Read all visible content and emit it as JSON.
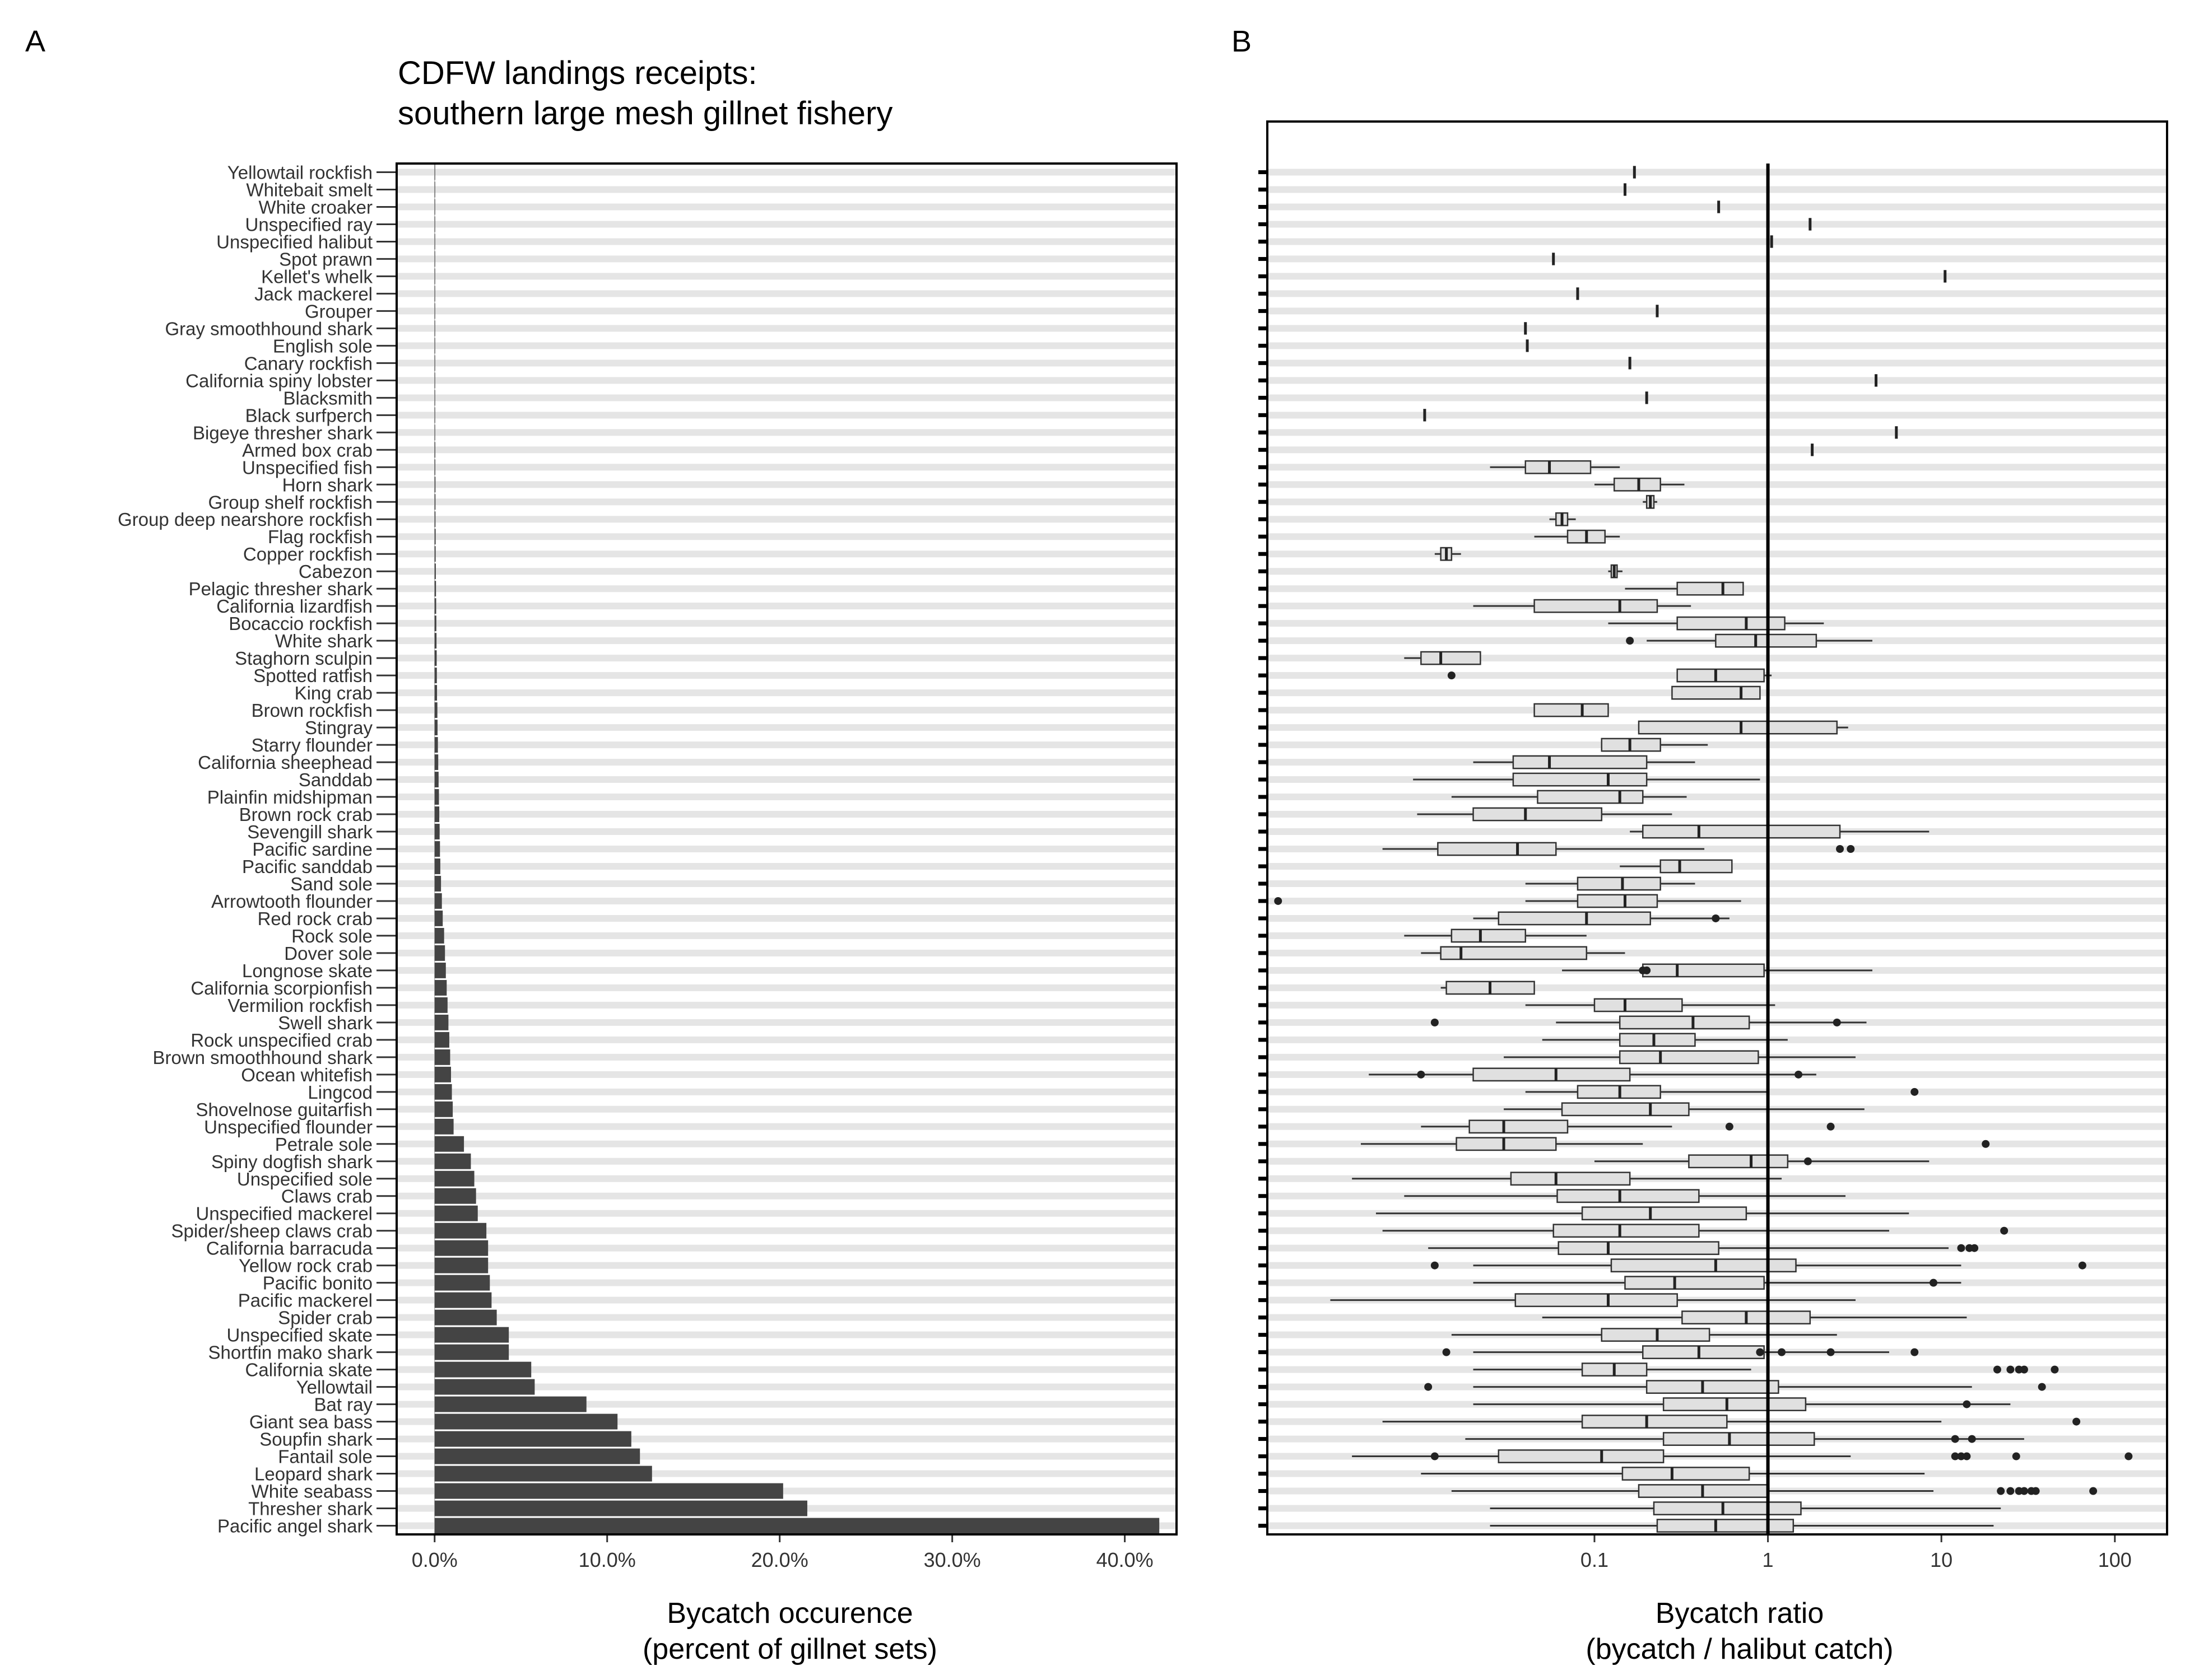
{
  "panel_a": {
    "tag": "A",
    "title_line1": "CDFW landings receipts:",
    "title_line2": "southern large mesh gillnet fishery"
  },
  "panel_b": {
    "tag": "B"
  },
  "chart_data": [
    {
      "type": "bar",
      "orientation": "horizontal",
      "title": "CDFW landings receipts:\nsouthern large mesh gillnet fishery",
      "xlabel": "Bycatch occurence\n(percent of gillnet sets)",
      "ylabel": "",
      "xlim": [
        -2.2,
        43
      ],
      "xticks": [
        0,
        10,
        20,
        30,
        40
      ],
      "xtick_labels": [
        "0.0%",
        "10.0%",
        "20.0%",
        "30.0%",
        "40.0%"
      ],
      "grid": "horizontal",
      "colors": {
        "bar": "#444444",
        "grid": "#e5e5e5"
      },
      "categories": [
        "Yellowtail rockfish",
        "Whitebait smelt",
        "White croaker",
        "Unspecified ray",
        "Unspecified halibut",
        "Spot prawn",
        "Kellet's whelk",
        "Jack mackerel",
        "Grouper",
        "Gray smoothhound shark",
        "English sole",
        "Canary rockfish",
        "California spiny lobster",
        "Blacksmith",
        "Black surfperch",
        "Bigeye thresher shark",
        "Armed box crab",
        "Unspecified fish",
        "Horn shark",
        "Group shelf rockfish",
        "Group deep nearshore rockfish",
        "Flag rockfish",
        "Copper rockfish",
        "Cabezon",
        "Pelagic thresher shark",
        "California lizardfish",
        "Bocaccio rockfish",
        "White shark",
        "Staghorn sculpin",
        "Spotted ratfish",
        "King crab",
        "Brown rockfish",
        "Stingray",
        "Starry flounder",
        "California sheephead",
        "Sanddab",
        "Plainfin midshipman",
        "Brown rock crab",
        "Sevengill shark",
        "Pacific sardine",
        "Pacific sanddab",
        "Sand sole",
        "Arrowtooth flounder",
        "Red rock crab",
        "Rock sole",
        "Dover sole",
        "Longnose skate",
        "California scorpionfish",
        "Vermilion rockfish",
        "Swell shark",
        "Rock unspecified crab",
        "Brown smoothhound shark",
        "Ocean whitefish",
        "Lingcod",
        "Shovelnose guitarfish",
        "Unspecified flounder",
        "Petrale sole",
        "Spiny dogfish shark",
        "Unspecified sole",
        "Claws crab",
        "Unspecified mackerel",
        "Spider/sheep claws crab",
        "California barracuda",
        "Yellow rock crab",
        "Pacific bonito",
        "Pacific mackerel",
        "Spider crab",
        "Unspecified skate",
        "Shortfin mako shark",
        "California skate",
        "Yellowtail",
        "Bat ray",
        "Giant sea bass",
        "Soupfin shark",
        "Fantail sole",
        "Leopard shark",
        "White seabass",
        "Thresher shark",
        "Pacific angel shark"
      ],
      "values": [
        0.02,
        0.02,
        0.02,
        0.02,
        0.02,
        0.02,
        0.02,
        0.02,
        0.02,
        0.02,
        0.02,
        0.02,
        0.02,
        0.02,
        0.02,
        0.03,
        0.04,
        0.04,
        0.05,
        0.05,
        0.05,
        0.06,
        0.06,
        0.07,
        0.08,
        0.09,
        0.1,
        0.11,
        0.12,
        0.13,
        0.14,
        0.16,
        0.17,
        0.19,
        0.21,
        0.23,
        0.25,
        0.27,
        0.29,
        0.31,
        0.33,
        0.37,
        0.42,
        0.47,
        0.55,
        0.6,
        0.65,
        0.7,
        0.75,
        0.8,
        0.85,
        0.9,
        0.95,
        1.0,
        1.05,
        1.1,
        1.7,
        2.1,
        2.3,
        2.4,
        2.5,
        3.0,
        3.1,
        3.1,
        3.2,
        3.3,
        3.6,
        4.3,
        4.3,
        5.6,
        5.8,
        8.8,
        10.6,
        11.4,
        11.9,
        12.6,
        20.2,
        21.6,
        42.0
      ]
    },
    {
      "type": "box",
      "orientation": "horizontal",
      "xlabel": "Bycatch ratio\n(bycatch / halibut catch)",
      "ylabel": "",
      "xscale": "log10",
      "xlim": [
        0.0013,
        200
      ],
      "xticks": [
        0.1,
        1,
        10,
        100
      ],
      "xtick_labels": [
        "0.1",
        "1",
        "10",
        "100"
      ],
      "reference_line_x": 1,
      "grid": "horizontal",
      "colors": {
        "box_fill": "#e0e0e0",
        "line": "#333333",
        "grid": "#e5e5e5"
      },
      "categories": [
        "Yellowtail rockfish",
        "Whitebait smelt",
        "White croaker",
        "Unspecified ray",
        "Unspecified halibut",
        "Spot prawn",
        "Kellet's whelk",
        "Jack mackerel",
        "Grouper",
        "Gray smoothhound shark",
        "English sole",
        "Canary rockfish",
        "California spiny lobster",
        "Blacksmith",
        "Black surfperch",
        "Bigeye thresher shark",
        "Armed box crab",
        "Unspecified fish",
        "Horn shark",
        "Group shelf rockfish",
        "Group deep nearshore rockfish",
        "Flag rockfish",
        "Copper rockfish",
        "Cabezon",
        "Pelagic thresher shark",
        "California lizardfish",
        "Bocaccio rockfish",
        "White shark",
        "Staghorn sculpin",
        "Spotted ratfish",
        "King crab",
        "Brown rockfish",
        "Stingray",
        "Starry flounder",
        "California sheephead",
        "Sanddab",
        "Plainfin midshipman",
        "Brown rock crab",
        "Sevengill shark",
        "Pacific sardine",
        "Pacific sanddab",
        "Sand sole",
        "Arrowtooth flounder",
        "Red rock crab",
        "Rock sole",
        "Dover sole",
        "Longnose skate",
        "California scorpionfish",
        "Vermilion rockfish",
        "Swell shark",
        "Rock unspecified crab",
        "Brown smoothhound shark",
        "Ocean whitefish",
        "Lingcod",
        "Shovelnose guitarfish",
        "Unspecified flounder",
        "Petrale sole",
        "Spiny dogfish shark",
        "Unspecified sole",
        "Claws crab",
        "Unspecified mackerel",
        "Spider/sheep claws crab",
        "California barracuda",
        "Yellow rock crab",
        "Pacific bonito",
        "Pacific mackerel",
        "Spider crab",
        "Unspecified skate",
        "Shortfin mako shark",
        "California skate",
        "Yellowtail",
        "Bat ray",
        "Giant sea bass",
        "Soupfin shark",
        "Fantail sole",
        "Leopard shark",
        "White seabass",
        "Thresher shark",
        "Pacific angel shark"
      ],
      "note_order": "boxes listed top to bottom; [min, q1, median, q3, max] in data units; null = no box",
      "boxes": [
        [
          0.17,
          0.17,
          0.17,
          0.17,
          0.17
        ],
        [
          0.15,
          0.15,
          0.15,
          0.15,
          0.15
        ],
        [
          0.52,
          0.52,
          0.52,
          0.52,
          0.52
        ],
        [
          1.75,
          1.75,
          1.75,
          1.75,
          1.75
        ],
        [
          1.05,
          1.05,
          1.05,
          1.05,
          1.05
        ],
        [
          0.058,
          0.058,
          0.058,
          0.058,
          0.058
        ],
        [
          10.5,
          10.5,
          10.5,
          10.5,
          10.5
        ],
        [
          0.08,
          0.08,
          0.08,
          0.08,
          0.08
        ],
        [
          0.23,
          0.23,
          0.23,
          0.23,
          0.23
        ],
        [
          0.04,
          0.04,
          0.04,
          0.04,
          0.04
        ],
        [
          0.041,
          0.041,
          0.041,
          0.041,
          0.041
        ],
        [
          0.16,
          0.16,
          0.16,
          0.16,
          0.16
        ],
        [
          4.2,
          4.2,
          4.2,
          4.2,
          4.2
        ],
        [
          0.2,
          0.2,
          0.2,
          0.2,
          0.2
        ],
        [
          0.0105,
          0.0105,
          0.0105,
          0.0105,
          0.0105
        ],
        [
          5.5,
          5.5,
          5.5,
          5.5,
          5.5
        ],
        [
          1.8,
          1.8,
          1.8,
          1.8,
          1.8
        ],
        [
          0.025,
          0.04,
          0.055,
          0.095,
          0.14
        ],
        [
          0.1,
          0.13,
          0.18,
          0.24,
          0.33
        ],
        [
          0.19,
          0.2,
          0.21,
          0.22,
          0.23
        ],
        [
          0.055,
          0.06,
          0.065,
          0.07,
          0.078
        ],
        [
          0.045,
          0.07,
          0.09,
          0.115,
          0.14
        ],
        [
          0.012,
          0.013,
          0.014,
          0.015,
          0.017
        ],
        [
          0.12,
          0.125,
          0.13,
          0.135,
          0.145
        ],
        [
          0.15,
          0.3,
          0.55,
          0.72,
          0.72
        ],
        [
          0.02,
          0.045,
          0.14,
          0.23,
          0.36
        ],
        [
          0.12,
          0.3,
          0.75,
          1.25,
          2.1
        ],
        [
          0.2,
          0.5,
          0.85,
          1.9,
          4.0
        ],
        [
          0.008,
          0.01,
          0.013,
          0.022,
          0.022
        ],
        [
          0.3,
          0.3,
          0.5,
          0.95,
          1.05
        ],
        [
          0.28,
          0.28,
          0.7,
          0.9,
          0.9
        ],
        [
          0.045,
          0.045,
          0.085,
          0.12,
          0.12
        ],
        [
          0.18,
          0.18,
          0.7,
          2.5,
          2.9
        ],
        [
          0.11,
          0.11,
          0.16,
          0.24,
          0.45
        ],
        [
          0.02,
          0.034,
          0.055,
          0.2,
          0.38
        ],
        [
          0.009,
          0.034,
          0.12,
          0.2,
          0.9
        ],
        [
          0.015,
          0.047,
          0.14,
          0.19,
          0.34
        ],
        [
          0.0095,
          0.02,
          0.04,
          0.11,
          0.28
        ],
        [
          0.16,
          0.19,
          0.4,
          2.6,
          8.5
        ],
        [
          0.006,
          0.0125,
          0.036,
          0.06,
          0.43
        ],
        [
          0.14,
          0.24,
          0.31,
          0.62,
          0.62
        ],
        [
          0.04,
          0.08,
          0.145,
          0.24,
          0.38
        ],
        [
          0.04,
          0.08,
          0.15,
          0.23,
          0.7
        ],
        [
          0.02,
          0.028,
          0.09,
          0.21,
          0.6
        ],
        [
          0.008,
          0.015,
          0.022,
          0.04,
          0.09
        ],
        [
          0.01,
          0.013,
          0.017,
          0.09,
          0.15
        ],
        [
          0.065,
          0.19,
          0.3,
          0.95,
          4.0
        ],
        [
          0.013,
          0.014,
          0.025,
          0.045,
          0.045
        ],
        [
          0.04,
          0.1,
          0.15,
          0.32,
          1.1
        ],
        [
          0.06,
          0.14,
          0.37,
          0.78,
          3.7
        ],
        [
          0.05,
          0.14,
          0.22,
          0.38,
          1.3
        ],
        [
          0.03,
          0.14,
          0.24,
          0.88,
          3.2
        ],
        [
          0.005,
          0.02,
          0.06,
          0.16,
          1.9
        ],
        [
          0.04,
          0.08,
          0.14,
          0.24,
          1.0
        ],
        [
          0.03,
          0.065,
          0.21,
          0.35,
          3.6
        ],
        [
          0.01,
          0.019,
          0.03,
          0.07,
          0.28
        ],
        [
          0.0045,
          0.016,
          0.03,
          0.06,
          0.19
        ],
        [
          0.1,
          0.35,
          0.8,
          1.3,
          8.5
        ],
        [
          0.004,
          0.033,
          0.06,
          0.16,
          1.2
        ],
        [
          0.008,
          0.061,
          0.14,
          0.4,
          2.8
        ],
        [
          0.0055,
          0.085,
          0.21,
          0.75,
          6.5
        ],
        [
          0.006,
          0.058,
          0.14,
          0.4,
          5.0
        ],
        [
          0.011,
          0.062,
          0.12,
          0.52,
          11.0
        ],
        [
          0.02,
          0.125,
          0.5,
          1.45,
          13.0
        ],
        [
          0.02,
          0.15,
          0.29,
          0.95,
          13.0
        ],
        [
          0.003,
          0.035,
          0.12,
          0.3,
          3.2
        ],
        [
          0.05,
          0.32,
          0.75,
          1.75,
          14.0
        ],
        [
          0.015,
          0.11,
          0.23,
          0.46,
          2.5
        ],
        [
          0.02,
          0.19,
          0.4,
          0.95,
          5.0
        ],
        [
          0.02,
          0.085,
          0.13,
          0.2,
          0.8
        ],
        [
          0.02,
          0.2,
          0.42,
          1.15,
          15.0
        ],
        [
          0.02,
          0.25,
          0.58,
          1.65,
          25.0
        ],
        [
          0.006,
          0.085,
          0.2,
          0.58,
          10.0
        ],
        [
          0.018,
          0.25,
          0.6,
          1.85,
          30.0
        ],
        [
          0.004,
          0.028,
          0.11,
          0.25,
          3.0
        ],
        [
          0.01,
          0.145,
          0.28,
          0.78,
          8.0
        ],
        [
          0.015,
          0.18,
          0.42,
          1.0,
          9.0
        ],
        [
          0.025,
          0.22,
          0.55,
          1.55,
          22.0
        ],
        [
          0.025,
          0.23,
          0.5,
          1.4,
          20.0
        ]
      ],
      "outliers": [
        [],
        [],
        [],
        [],
        [],
        [],
        [],
        [],
        [],
        [],
        [],
        [],
        [],
        [],
        [],
        [],
        [],
        [],
        [],
        [],
        [],
        [],
        [],
        [],
        [],
        [],
        [],
        [
          0.16
        ],
        [],
        [
          0.015
        ],
        [],
        [],
        [],
        [],
        [],
        [],
        [],
        [],
        [],
        [
          2.6,
          3.0
        ],
        [],
        [],
        [
          0.0015
        ],
        [
          0.5
        ],
        [],
        [],
        [
          0.19,
          0.2
        ],
        [],
        [],
        [
          0.012,
          2.5
        ],
        [],
        [],
        [
          0.01,
          1.5
        ],
        [
          7.0
        ],
        [],
        [
          0.6,
          2.3
        ],
        [
          18.0
        ],
        [
          1.7
        ],
        [],
        [],
        [],
        [
          23.0
        ],
        [
          13.0,
          14.5,
          15.5
        ],
        [
          0.012,
          65.0
        ],
        [
          9.0
        ],
        [],
        [],
        [],
        [
          0.014,
          0.9,
          1.2,
          2.3,
          7.0
        ],
        [
          21.0,
          25.0,
          28.0,
          30.0,
          45.0
        ],
        [
          0.011,
          38.0
        ],
        [
          14.0
        ],
        [
          60.0
        ],
        [
          12.0,
          15.0
        ],
        [
          0.012,
          12.0,
          13.0,
          14.0,
          27.0,
          120.0
        ],
        [],
        [
          22.0,
          25.0,
          28.0,
          30.0,
          33.0,
          35.0,
          75.0
        ]
      ]
    }
  ]
}
